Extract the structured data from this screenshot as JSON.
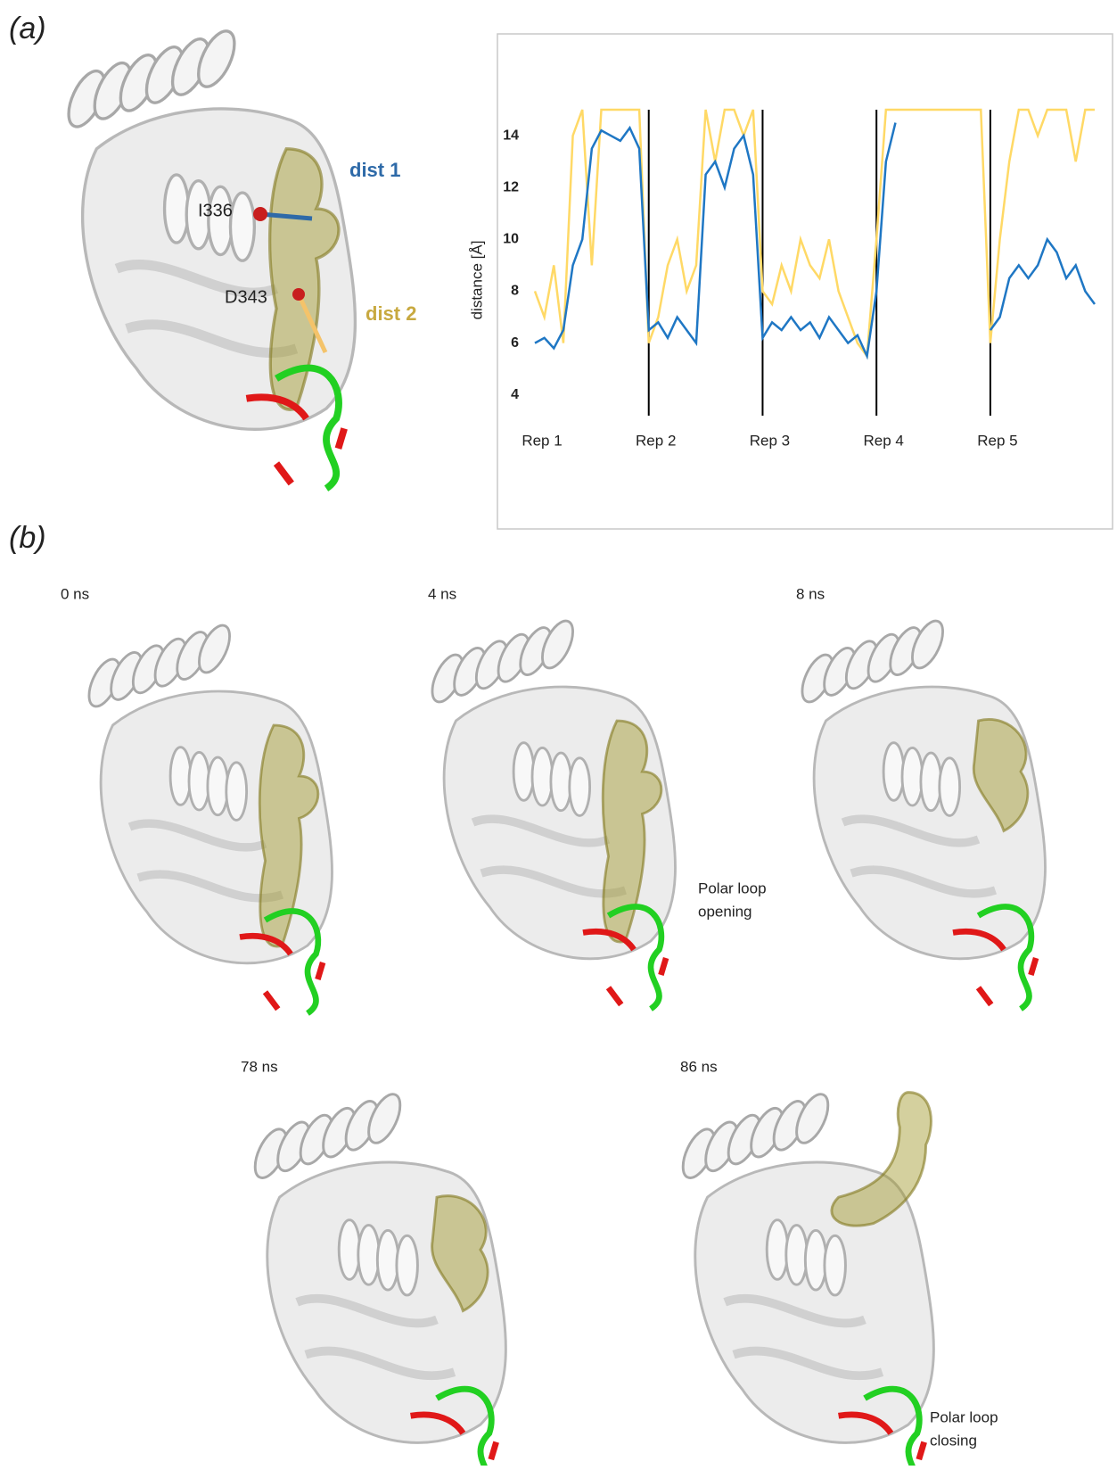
{
  "panel_a": {
    "label": "(a)",
    "residue_1": "I336",
    "residue_2": "D343",
    "distance_1": "dist 1",
    "distance_2": "dist 2"
  },
  "chart_data": {
    "type": "line",
    "y_label": "distance [Å]",
    "categories": [
      "Rep 1",
      null,
      null,
      null,
      null,
      null,
      null,
      null,
      null,
      null,
      null,
      null,
      "Rep 2",
      null,
      null,
      null,
      null,
      null,
      null,
      null,
      null,
      null,
      null,
      null,
      "Rep 3",
      null,
      null,
      null,
      null,
      null,
      null,
      null,
      null,
      null,
      null,
      null,
      "Rep 4",
      null,
      null,
      null,
      null,
      null,
      null,
      null,
      null,
      null,
      null,
      null,
      "Rep 5",
      null,
      null,
      null,
      null,
      null,
      null,
      null,
      null,
      null,
      null,
      null
    ],
    "series": [
      {
        "name": "dist 2",
        "color": "#ffd966",
        "values": [
          8,
          7,
          9,
          6,
          14,
          15,
          9,
          15,
          15,
          15,
          15,
          15,
          6,
          7,
          9,
          10,
          8,
          9,
          15,
          13,
          15,
          15,
          14,
          15,
          8,
          7.5,
          9,
          8,
          10,
          9,
          8.5,
          10,
          8,
          7,
          6,
          5.5,
          10,
          15,
          15,
          15,
          15,
          15,
          15,
          15,
          15,
          15,
          15,
          15,
          6,
          10,
          13,
          15,
          15,
          14,
          15,
          15,
          15,
          13,
          15,
          15
        ]
      },
      {
        "name": "dist 1",
        "color": "#1f77c4",
        "values": [
          6,
          6.2,
          5.8,
          6.5,
          9,
          10,
          13.5,
          14.2,
          14,
          13.8,
          14.3,
          13.5,
          6.5,
          6.8,
          6.2,
          7,
          6.5,
          6,
          12.5,
          13,
          12,
          13.5,
          14,
          12.5,
          6.2,
          6.8,
          6.5,
          7,
          6.5,
          6.8,
          6.2,
          7,
          6.5,
          6,
          6.3,
          5.5,
          8,
          13,
          14.5,
          null,
          null,
          null,
          null,
          null,
          null,
          null,
          null,
          null,
          6.5,
          7,
          8.5,
          9,
          8.5,
          9,
          10,
          9.5,
          8.5,
          9,
          8,
          7.5
        ]
      }
    ],
    "ylim": [
      3.2,
      15
    ],
    "yticks": [
      4,
      6,
      8,
      10,
      12,
      14
    ]
  },
  "panel_b": {
    "label": "(b)",
    "snapshots": [
      "0 ns",
      "4 ns",
      "8 ns",
      "78 ns",
      "86 ns"
    ],
    "opening_note": [
      "Polar loop",
      "opening"
    ],
    "closing_note": [
      "Polar loop",
      "closing"
    ]
  }
}
